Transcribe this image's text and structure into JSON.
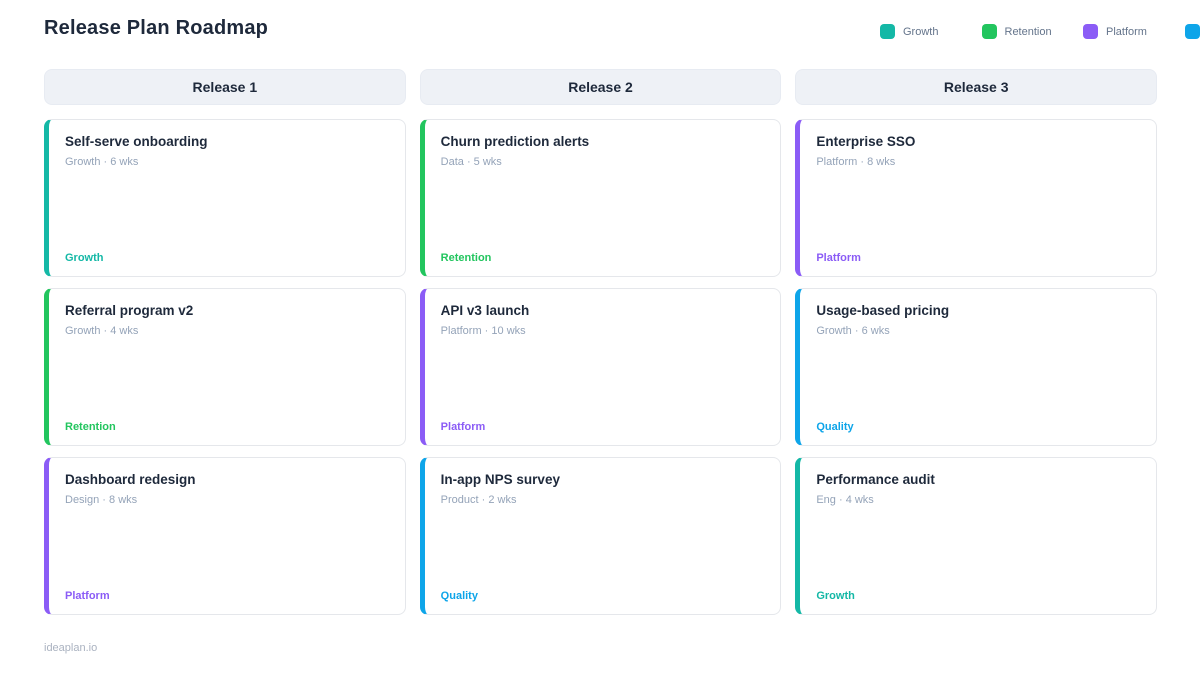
{
  "page": {
    "title": "Release Plan Roadmap",
    "footer": "ideaplan.io"
  },
  "legend": [
    {
      "label": "Growth",
      "color": "#14b8a6"
    },
    {
      "label": "Retention",
      "color": "#22c55e"
    },
    {
      "label": "Platform",
      "color": "#8b5cf6"
    },
    {
      "label": "",
      "color": "#0ea5e9"
    }
  ],
  "columns": [
    {
      "header": "Release 1",
      "cards": [
        {
          "title": "Self-serve onboarding",
          "meta": "Growth · 6 wks",
          "tag": "Growth",
          "color": "#14b8a6"
        },
        {
          "title": "Referral program v2",
          "meta": "Growth · 4 wks",
          "tag": "Retention",
          "color": "#22c55e"
        },
        {
          "title": "Dashboard redesign",
          "meta": "Design · 8 wks",
          "tag": "Platform",
          "color": "#8b5cf6"
        }
      ]
    },
    {
      "header": "Release 2",
      "cards": [
        {
          "title": "Churn prediction alerts",
          "meta": "Data · 5 wks",
          "tag": "Retention",
          "color": "#22c55e"
        },
        {
          "title": "API v3 launch",
          "meta": "Platform · 10 wks",
          "tag": "Platform",
          "color": "#8b5cf6"
        },
        {
          "title": "In-app NPS survey",
          "meta": "Product · 2 wks",
          "tag": "Quality",
          "color": "#0ea5e9"
        }
      ]
    },
    {
      "header": "Release 3",
      "cards": [
        {
          "title": "Enterprise SSO",
          "meta": "Platform · 8 wks",
          "tag": "Platform",
          "color": "#8b5cf6"
        },
        {
          "title": "Usage-based pricing",
          "meta": "Growth · 6 wks",
          "tag": "Quality",
          "color": "#0ea5e9"
        },
        {
          "title": "Performance audit",
          "meta": "Eng · 4 wks",
          "tag": "Growth",
          "color": "#14b8a6"
        }
      ]
    }
  ]
}
